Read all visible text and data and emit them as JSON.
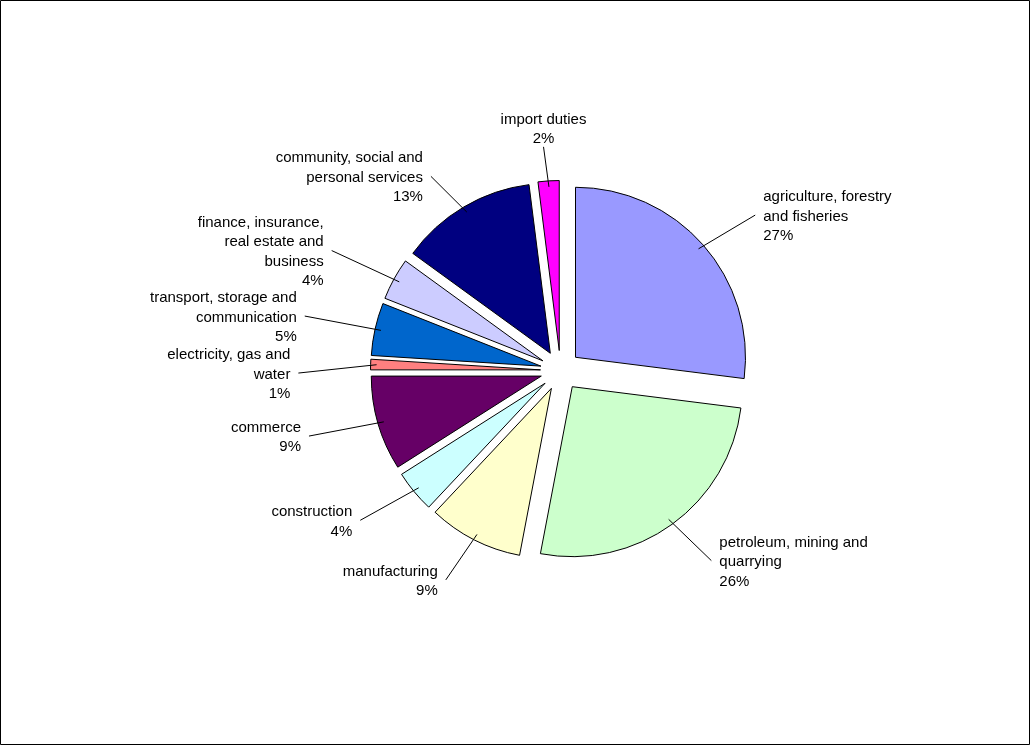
{
  "chart_data": {
    "type": "pie",
    "categories": [
      "agriculture, forestry and fisheries",
      "petroleum, mining and quarrying",
      "manufacturing",
      "construction",
      "commerce",
      "electricity, gas and water",
      "transport, storage and communication",
      "finance, insurance, real estate and business",
      "community, social and personal services",
      "import duties"
    ],
    "values": [
      27,
      26,
      9,
      4,
      9,
      1,
      5,
      4,
      13,
      2
    ],
    "colors": [
      "#9999ff",
      "#ccffcc",
      "#ffffcc",
      "#ccffff",
      "#660066",
      "#ff8080",
      "#0066cc",
      "#ccccff",
      "#000080",
      "#ff00ff"
    ],
    "value_labels": [
      "27%",
      "26%",
      "9%",
      "4%",
      "9%",
      "1%",
      "5%",
      "4%",
      "13%",
      "2%"
    ]
  }
}
